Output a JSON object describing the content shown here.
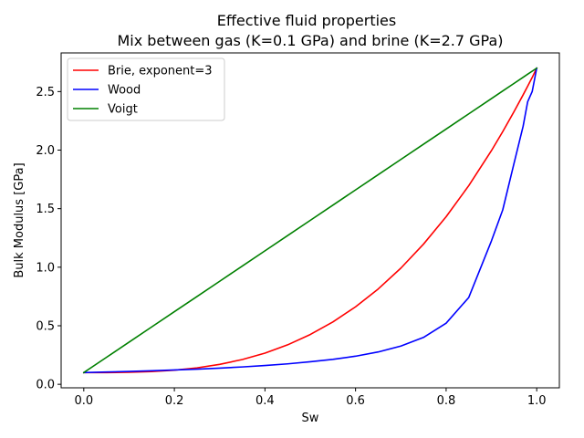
{
  "chart_data": {
    "type": "line",
    "title": "Effective fluid properties",
    "subtitle": "Mix between gas (K=0.1 GPa) and brine (K=2.7 GPa)",
    "xlabel": "Sw",
    "ylabel": "Bulk Modulus [GPa]",
    "xlim": [
      -0.05,
      1.05
    ],
    "ylim": [
      -0.03,
      2.83
    ],
    "xticks": [
      0.0,
      0.2,
      0.4,
      0.6,
      0.8,
      1.0
    ],
    "xtick_labels": [
      "0.0",
      "0.2",
      "0.4",
      "0.6",
      "0.8",
      "1.0"
    ],
    "yticks": [
      0.0,
      0.5,
      1.0,
      1.5,
      2.0,
      2.5
    ],
    "ytick_labels": [
      "0.0",
      "0.5",
      "1.0",
      "1.5",
      "2.0",
      "2.5"
    ],
    "legend_position": "top-left",
    "grid": false,
    "x": [
      0.0,
      0.05,
      0.1,
      0.15,
      0.2,
      0.25,
      0.3,
      0.35,
      0.4,
      0.45,
      0.5,
      0.55,
      0.6,
      0.65,
      0.7,
      0.75,
      0.8,
      0.85,
      0.9,
      0.925,
      0.95,
      0.97,
      0.98,
      0.99,
      1.0
    ],
    "series": [
      {
        "name": "Brie, exponent=3",
        "color": "#ff0000",
        "values": [
          0.1,
          0.1003,
          0.1026,
          0.1088,
          0.1208,
          0.1406,
          0.1702,
          0.2115,
          0.2664,
          0.3369,
          0.425,
          0.5326,
          0.6616,
          0.814,
          0.9918,
          1.1969,
          1.4312,
          1.6967,
          1.9954,
          2.158,
          2.3291,
          2.472,
          2.5454,
          2.6201,
          2.7
        ]
      },
      {
        "name": "Wood",
        "color": "#0000ff",
        "values": [
          0.1,
          0.1046,
          0.1098,
          0.1156,
          0.1221,
          0.1296,
          0.1382,
          0.1483,
          0.1602,
          0.1745,
          0.1929,
          0.2128,
          0.24,
          0.2761,
          0.3266,
          0.4004,
          0.522,
          0.7417,
          1.2245,
          1.4896,
          1.8884,
          2.2041,
          2.4125,
          2.5,
          2.7
        ]
      },
      {
        "name": "Voigt",
        "color": "#008000",
        "values": [
          0.1,
          0.23,
          0.36,
          0.49,
          0.62,
          0.75,
          0.88,
          1.01,
          1.14,
          1.27,
          1.4,
          1.53,
          1.66,
          1.79,
          1.92,
          2.05,
          2.18,
          2.31,
          2.44,
          2.505,
          2.57,
          2.622,
          2.648,
          2.674,
          2.7
        ]
      }
    ]
  }
}
